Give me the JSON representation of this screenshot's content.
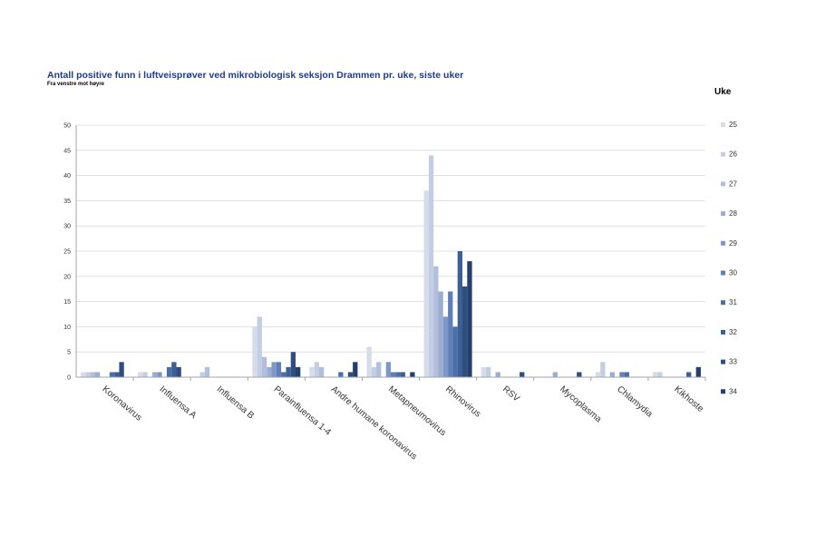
{
  "chart_data": {
    "type": "bar",
    "title": "Antall positive funn i luftveisprøver ved mikrobiologisk seksjon Drammen pr. uke, siste uker",
    "subtitle": "Fra venstre mot høyre",
    "legend_title": "Uke",
    "legend_position": "right",
    "grid": true,
    "ylim": [
      0,
      50
    ],
    "yticks": [
      0,
      5,
      10,
      15,
      20,
      25,
      30,
      35,
      40,
      45,
      50
    ],
    "categories": [
      "Koronavirus",
      "Influensa A",
      "Influensa B",
      "Parainfluensa 1-4",
      "Andre humane koronavirus",
      "Metapneumovirus",
      "Rhinovirus",
      "RSV",
      "Mycoplasma",
      "Chlamydia",
      "Kikhoste"
    ],
    "series": [
      {
        "name": "25",
        "color": "#d5dcea",
        "values": [
          1,
          1,
          0,
          10,
          2,
          6,
          37,
          2,
          0,
          1,
          1
        ]
      },
      {
        "name": "26",
        "color": "#c4cee3",
        "values": [
          1,
          1,
          1,
          12,
          3,
          2,
          44,
          2,
          0,
          3,
          1
        ]
      },
      {
        "name": "27",
        "color": "#b1bfdc",
        "values": [
          1,
          0,
          2,
          4,
          2,
          3,
          22,
          0,
          0,
          0,
          0
        ]
      },
      {
        "name": "28",
        "color": "#9aaed2",
        "values": [
          1,
          1,
          0,
          2,
          0,
          0,
          17,
          1,
          1,
          1,
          0
        ]
      },
      {
        "name": "29",
        "color": "#7e97c6",
        "values": [
          0,
          1,
          0,
          3,
          0,
          3,
          12,
          0,
          0,
          0,
          0
        ]
      },
      {
        "name": "30",
        "color": "#5f7fb9",
        "values": [
          0,
          0,
          0,
          3,
          0,
          1,
          17,
          0,
          0,
          1,
          0
        ]
      },
      {
        "name": "31",
        "color": "#4a6ea9",
        "values": [
          1,
          2,
          0,
          1,
          1,
          1,
          10,
          0,
          0,
          1,
          0
        ]
      },
      {
        "name": "32",
        "color": "#3c5f96",
        "values": [
          1,
          3,
          0,
          2,
          0,
          1,
          25,
          0,
          0,
          0,
          1
        ]
      },
      {
        "name": "33",
        "color": "#2e4e80",
        "values": [
          3,
          2,
          0,
          5,
          1,
          0,
          18,
          1,
          1,
          0,
          0
        ]
      },
      {
        "name": "34",
        "color": "#243f6b",
        "values": [
          0,
          0,
          0,
          2,
          3,
          1,
          23,
          0,
          0,
          0,
          2
        ]
      }
    ]
  }
}
